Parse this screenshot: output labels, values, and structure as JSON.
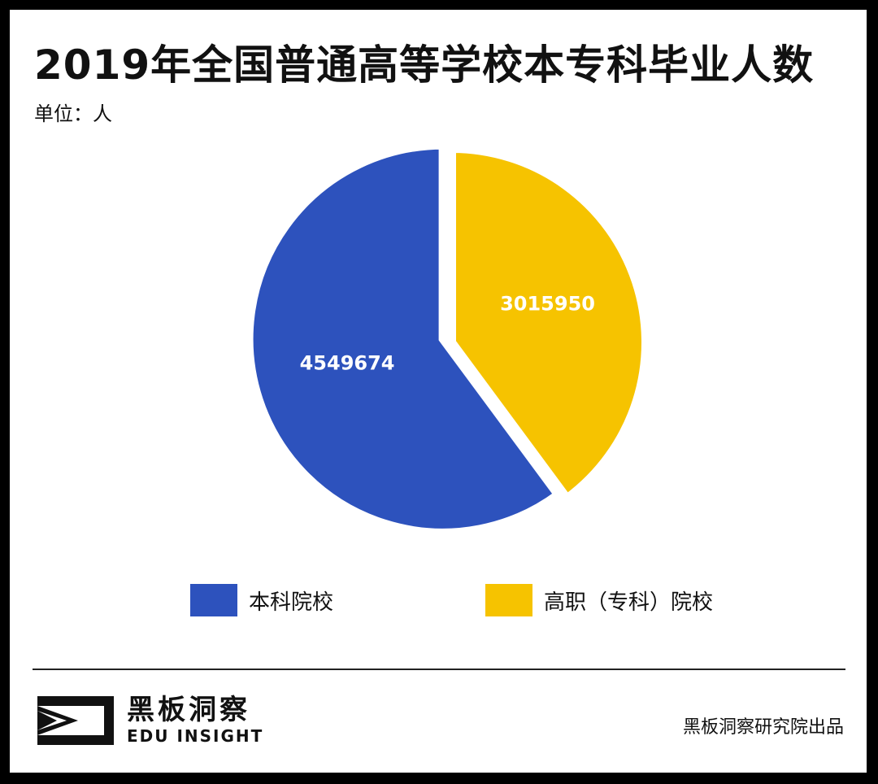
{
  "header": {
    "title": "2019年全国普通高等学校本专科毕业人数",
    "unit": "单位：人"
  },
  "chart_data": {
    "type": "pie",
    "title": "2019年全国普通高等学校本专科毕业人数",
    "unit": "单位：人",
    "slices": [
      {
        "label": "本科院校",
        "value": 4549674,
        "value_label": "4549674",
        "color": "#2D52BD"
      },
      {
        "label": "高职（专科）院校",
        "value": 3015950,
        "value_label": "3015950",
        "color": "#F6C300"
      }
    ],
    "legend_position": "bottom"
  },
  "footer": {
    "brand_cn": "黑板洞察",
    "brand_en": "EDU INSIGHT",
    "source": "黑板洞察研究院出品"
  }
}
